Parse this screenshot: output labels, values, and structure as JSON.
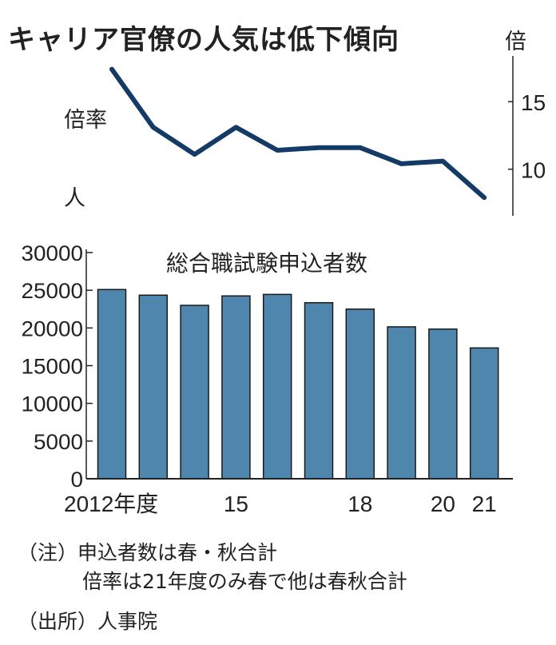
{
  "title": "キャリア官僚の人気は低下傾向",
  "chart_data": [
    {
      "type": "line",
      "series_label": "倍率",
      "unit_label": "倍",
      "side_label": "人",
      "x": [
        "2012",
        "2013",
        "2014",
        "2015",
        "2016",
        "2017",
        "2018",
        "2019",
        "2020",
        "2021"
      ],
      "values": [
        17.4,
        13.1,
        11.1,
        13.1,
        11.4,
        11.6,
        11.6,
        10.4,
        10.6,
        7.9
      ],
      "y_ticks": [
        "15",
        "10"
      ],
      "ylim": [
        7.5,
        18.5
      ],
      "y_axis_side": "right",
      "color": "#143a66",
      "grid": false
    },
    {
      "type": "bar",
      "title": "総合職試験申込者数",
      "x": [
        "2012",
        "2013",
        "2014",
        "2015",
        "2016",
        "2017",
        "2018",
        "2019",
        "2020",
        "2021"
      ],
      "values": [
        25100,
        24350,
        23000,
        24250,
        24450,
        23350,
        22500,
        20150,
        19850,
        17350
      ],
      "x_tick_labels": [
        {
          "index": 0,
          "label": "2012年度"
        },
        {
          "index": 3,
          "label": "15"
        },
        {
          "index": 6,
          "label": "18"
        },
        {
          "index": 8,
          "label": "20"
        },
        {
          "index": 9,
          "label": "21"
        }
      ],
      "y_ticks": [
        "0",
        "5000",
        "10000",
        "15000",
        "20000",
        "25000",
        "30000"
      ],
      "ylim": [
        0,
        30000
      ],
      "color": "#4f86ad",
      "grid": false
    }
  ],
  "notes": {
    "line1": "（注）申込者数は春・秋合計",
    "line2": "倍率は21年度のみ春で他は春秋合計",
    "source": "（出所）人事院"
  }
}
